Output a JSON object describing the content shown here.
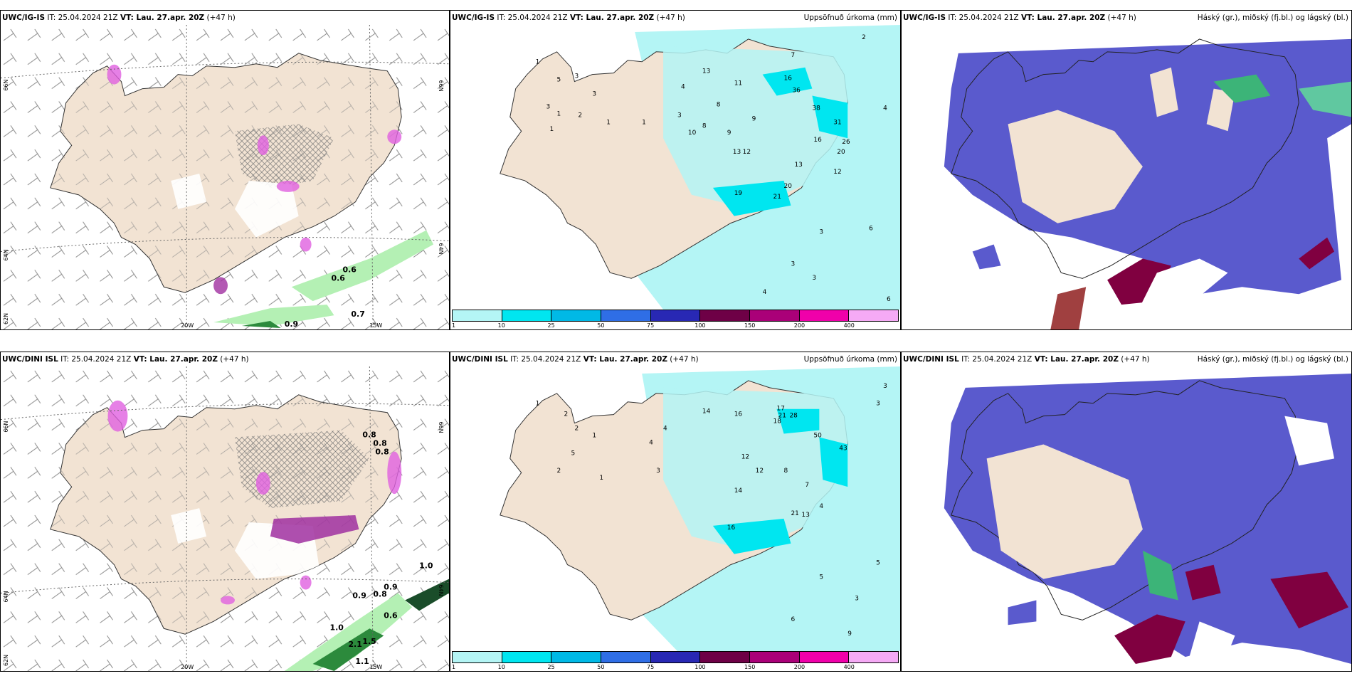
{
  "row1": {
    "p1": {
      "model": "UWC/IG-IS",
      "it": " IT: 25.04.2024 21Z ",
      "vt_label": "VT:",
      "vt": " Lau. 27.apr. 20Z",
      "lead": " (+47 h)"
    },
    "p2": {
      "model": "UWC/IG-IS",
      "it": " IT: 25.04.2024 21Z ",
      "vt_label": "VT:",
      "vt": " Lau. 27.apr. 20Z",
      "lead": " (+47 h)",
      "right": "Uppsöfnuð úrkoma (mm)"
    },
    "p3": {
      "model": "UWC/IG-IS",
      "it": " IT: 25.04.2024 21Z ",
      "vt_label": "VT:",
      "vt": " Lau. 27.apr. 20Z",
      "lead": " (+47 h)",
      "right": "Háský (gr.), miðský (fj.bl.) og lágský (bl.)"
    }
  },
  "row2": {
    "p1": {
      "model": "UWC/DINI ISL",
      "it": " IT: 25.04.2024 21Z ",
      "vt_label": "VT:",
      "vt": " Lau. 27.apr. 20Z",
      "lead": " (+47 h)"
    },
    "p2": {
      "model": "UWC/DINI ISL",
      "it": " IT: 25.04.2024 21Z ",
      "vt_label": "VT:",
      "vt": " Lau. 27.apr. 20Z",
      "lead": " (+47 h)",
      "right": "Uppsöfnuð úrkoma (mm)"
    },
    "p3": {
      "model": "UWC/DINI ISL",
      "it": " IT: 25.04.2024 21Z ",
      "vt_label": "VT:",
      "vt": " Lau. 27.apr. 20Z",
      "lead": " (+47 h)",
      "right": "Háský (gr.), miðský (fj.bl.) og lágský (bl.)"
    }
  },
  "axes": {
    "lat66": "66N",
    "lat64": "64N",
    "lat62": "62N",
    "lon20": "20W",
    "lon15": "15W"
  },
  "colorbar": {
    "labels": [
      "1",
      "10",
      "25",
      "50",
      "75",
      "100",
      "150",
      "200",
      "400"
    ],
    "colors": [
      "#b4f5f5",
      "#00e6f0",
      "#00b9e6",
      "#2f6ee6",
      "#2828b4",
      "#6e0046",
      "#aa0078",
      "#f000aa",
      "#f5aaf5"
    ]
  },
  "precip_labels_r1": [
    "0.6",
    "0.6",
    "0.9",
    "0.7"
  ],
  "precip_labels_r2": [
    "0.8",
    "0.8",
    "0.8",
    "0.9",
    "0.8",
    "0.9",
    "0.6",
    "1.0",
    "1.0",
    "2.1",
    "1.1",
    "1.5"
  ],
  "accum_r1": [
    "1",
    "5",
    "3",
    "3",
    "1",
    "2",
    "1",
    "1",
    "3",
    "1",
    "13",
    "8",
    "11",
    "4",
    "3",
    "10",
    "8",
    "9",
    "9",
    "13",
    "12",
    "19",
    "21",
    "20",
    "16",
    "38",
    "31",
    "36",
    "26",
    "20",
    "16",
    "2",
    "7",
    "13",
    "4",
    "12",
    "3",
    "3",
    "4",
    "3",
    "6",
    "6"
  ],
  "accum_r2": [
    "1",
    "2",
    "2",
    "5",
    "2",
    "1",
    "1",
    "4",
    "4",
    "3",
    "14",
    "16",
    "17",
    "18",
    "21",
    "28",
    "50",
    "43",
    "12",
    "12",
    "14",
    "16",
    "21",
    "13",
    "8",
    "7",
    "4",
    "5",
    "3",
    "3",
    "3",
    "5",
    "6",
    "9"
  ],
  "colors": {
    "land": "#f2e3d3",
    "ocean": "#ffffff",
    "precip_light": "#b4f5f5",
    "precip_mid": "#00e6f0",
    "cloud_mid": "#5a5acd",
    "cloud_low": "#800040",
    "cloud_high": "#3cb478",
    "snow": "#e060e0"
  }
}
